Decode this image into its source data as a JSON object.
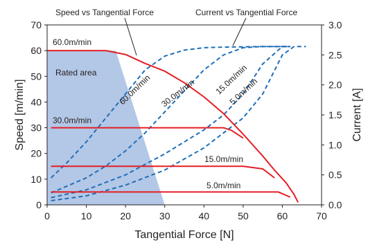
{
  "colors": {
    "speed": "#e31e24",
    "current": "#1f6fb8",
    "rated_area": "#b3c7e6",
    "text": "#231f20"
  },
  "chart_data": {
    "type": "line",
    "title_labels": {
      "speed": "Speed vs Tangential Force",
      "current": "Current vs Tangential Force"
    },
    "xlabel": "Tangential Force [N]",
    "ylabel_left": "Speed [m/min]",
    "ylabel_right": "Current [A]",
    "xlim": [
      0,
      70
    ],
    "ylim_left": [
      0,
      70
    ],
    "ylim_right": [
      0,
      3.0
    ],
    "xticks": [
      "0",
      "10",
      "20",
      "30",
      "40",
      "50",
      "60",
      "70"
    ],
    "yticks_left": [
      "0",
      "10",
      "20",
      "30",
      "40",
      "50",
      "60",
      "70"
    ],
    "yticks_right": [
      "0.0",
      "0.5",
      "1.0",
      "1.5",
      "2.0",
      "2.5",
      "3.0"
    ],
    "grid": false,
    "rated_area": {
      "label": "Rated area",
      "polygon": [
        [
          0,
          0
        ],
        [
          0,
          60
        ],
        [
          17.5,
          60
        ],
        [
          30,
          0
        ]
      ]
    },
    "speed_series": [
      {
        "name": "60.0m/min",
        "points": [
          [
            0,
            60
          ],
          [
            15,
            60
          ],
          [
            20,
            58.5
          ],
          [
            25,
            55
          ],
          [
            30,
            52
          ],
          [
            35,
            47.5
          ],
          [
            40,
            42
          ],
          [
            45,
            35.5
          ],
          [
            50,
            27.5
          ],
          [
            55,
            19
          ],
          [
            58,
            13.5
          ],
          [
            61,
            8.5
          ],
          [
            63,
            4
          ],
          [
            64,
            1
          ]
        ]
      },
      {
        "name": "30.0m/min",
        "points": [
          [
            1,
            30
          ],
          [
            45,
            30
          ],
          [
            47,
            29
          ],
          [
            50,
            26
          ]
        ]
      },
      {
        "name": "15.0m/min",
        "points": [
          [
            1,
            15
          ],
          [
            50,
            15
          ],
          [
            55,
            14
          ],
          [
            58,
            10.5
          ]
        ]
      },
      {
        "name": "5.0m/min",
        "points": [
          [
            1,
            5
          ],
          [
            59,
            5
          ],
          [
            62,
            3
          ]
        ]
      }
    ],
    "current_series": [
      {
        "name": "60.0m/min",
        "points": [
          [
            1,
            0.45
          ],
          [
            5,
            0.7
          ],
          [
            10,
            1.05
          ],
          [
            15,
            1.45
          ],
          [
            20,
            1.85
          ],
          [
            25,
            2.25
          ],
          [
            30,
            2.48
          ],
          [
            35,
            2.58
          ],
          [
            40,
            2.62
          ],
          [
            45,
            2.63
          ],
          [
            55,
            2.64
          ],
          [
            62,
            2.64
          ]
        ]
      },
      {
        "name": "30.0m/min",
        "points": [
          [
            1,
            0.2
          ],
          [
            10,
            0.45
          ],
          [
            15,
            0.65
          ],
          [
            20,
            0.9
          ],
          [
            25,
            1.2
          ],
          [
            30,
            1.55
          ],
          [
            35,
            1.9
          ],
          [
            40,
            2.25
          ],
          [
            45,
            2.5
          ],
          [
            50,
            2.62
          ],
          [
            55,
            2.64
          ],
          [
            62,
            2.64
          ]
        ]
      },
      {
        "name": "15.0m/min",
        "points": [
          [
            1,
            0.12
          ],
          [
            10,
            0.25
          ],
          [
            20,
            0.5
          ],
          [
            30,
            0.85
          ],
          [
            40,
            1.25
          ],
          [
            45,
            1.5
          ],
          [
            50,
            1.85
          ],
          [
            55,
            2.35
          ],
          [
            60,
            2.64
          ],
          [
            62,
            2.64
          ]
        ]
      },
      {
        "name": "5.0m/min",
        "points": [
          [
            1,
            0.07
          ],
          [
            10,
            0.15
          ],
          [
            20,
            0.33
          ],
          [
            30,
            0.58
          ],
          [
            40,
            0.95
          ],
          [
            50,
            1.45
          ],
          [
            55,
            1.85
          ],
          [
            60,
            2.5
          ],
          [
            63,
            2.64
          ],
          [
            66,
            2.64
          ]
        ]
      }
    ],
    "annotations": {
      "speed_60": "60.0m/min",
      "speed_30": "30.0m/min",
      "speed_15": "15.0m/min",
      "speed_5": "5.0m/min",
      "current_60": "60.0m/min",
      "current_30": "30.0m/min",
      "current_15": "15.0m/min",
      "current_5": "5.0m/min"
    }
  }
}
